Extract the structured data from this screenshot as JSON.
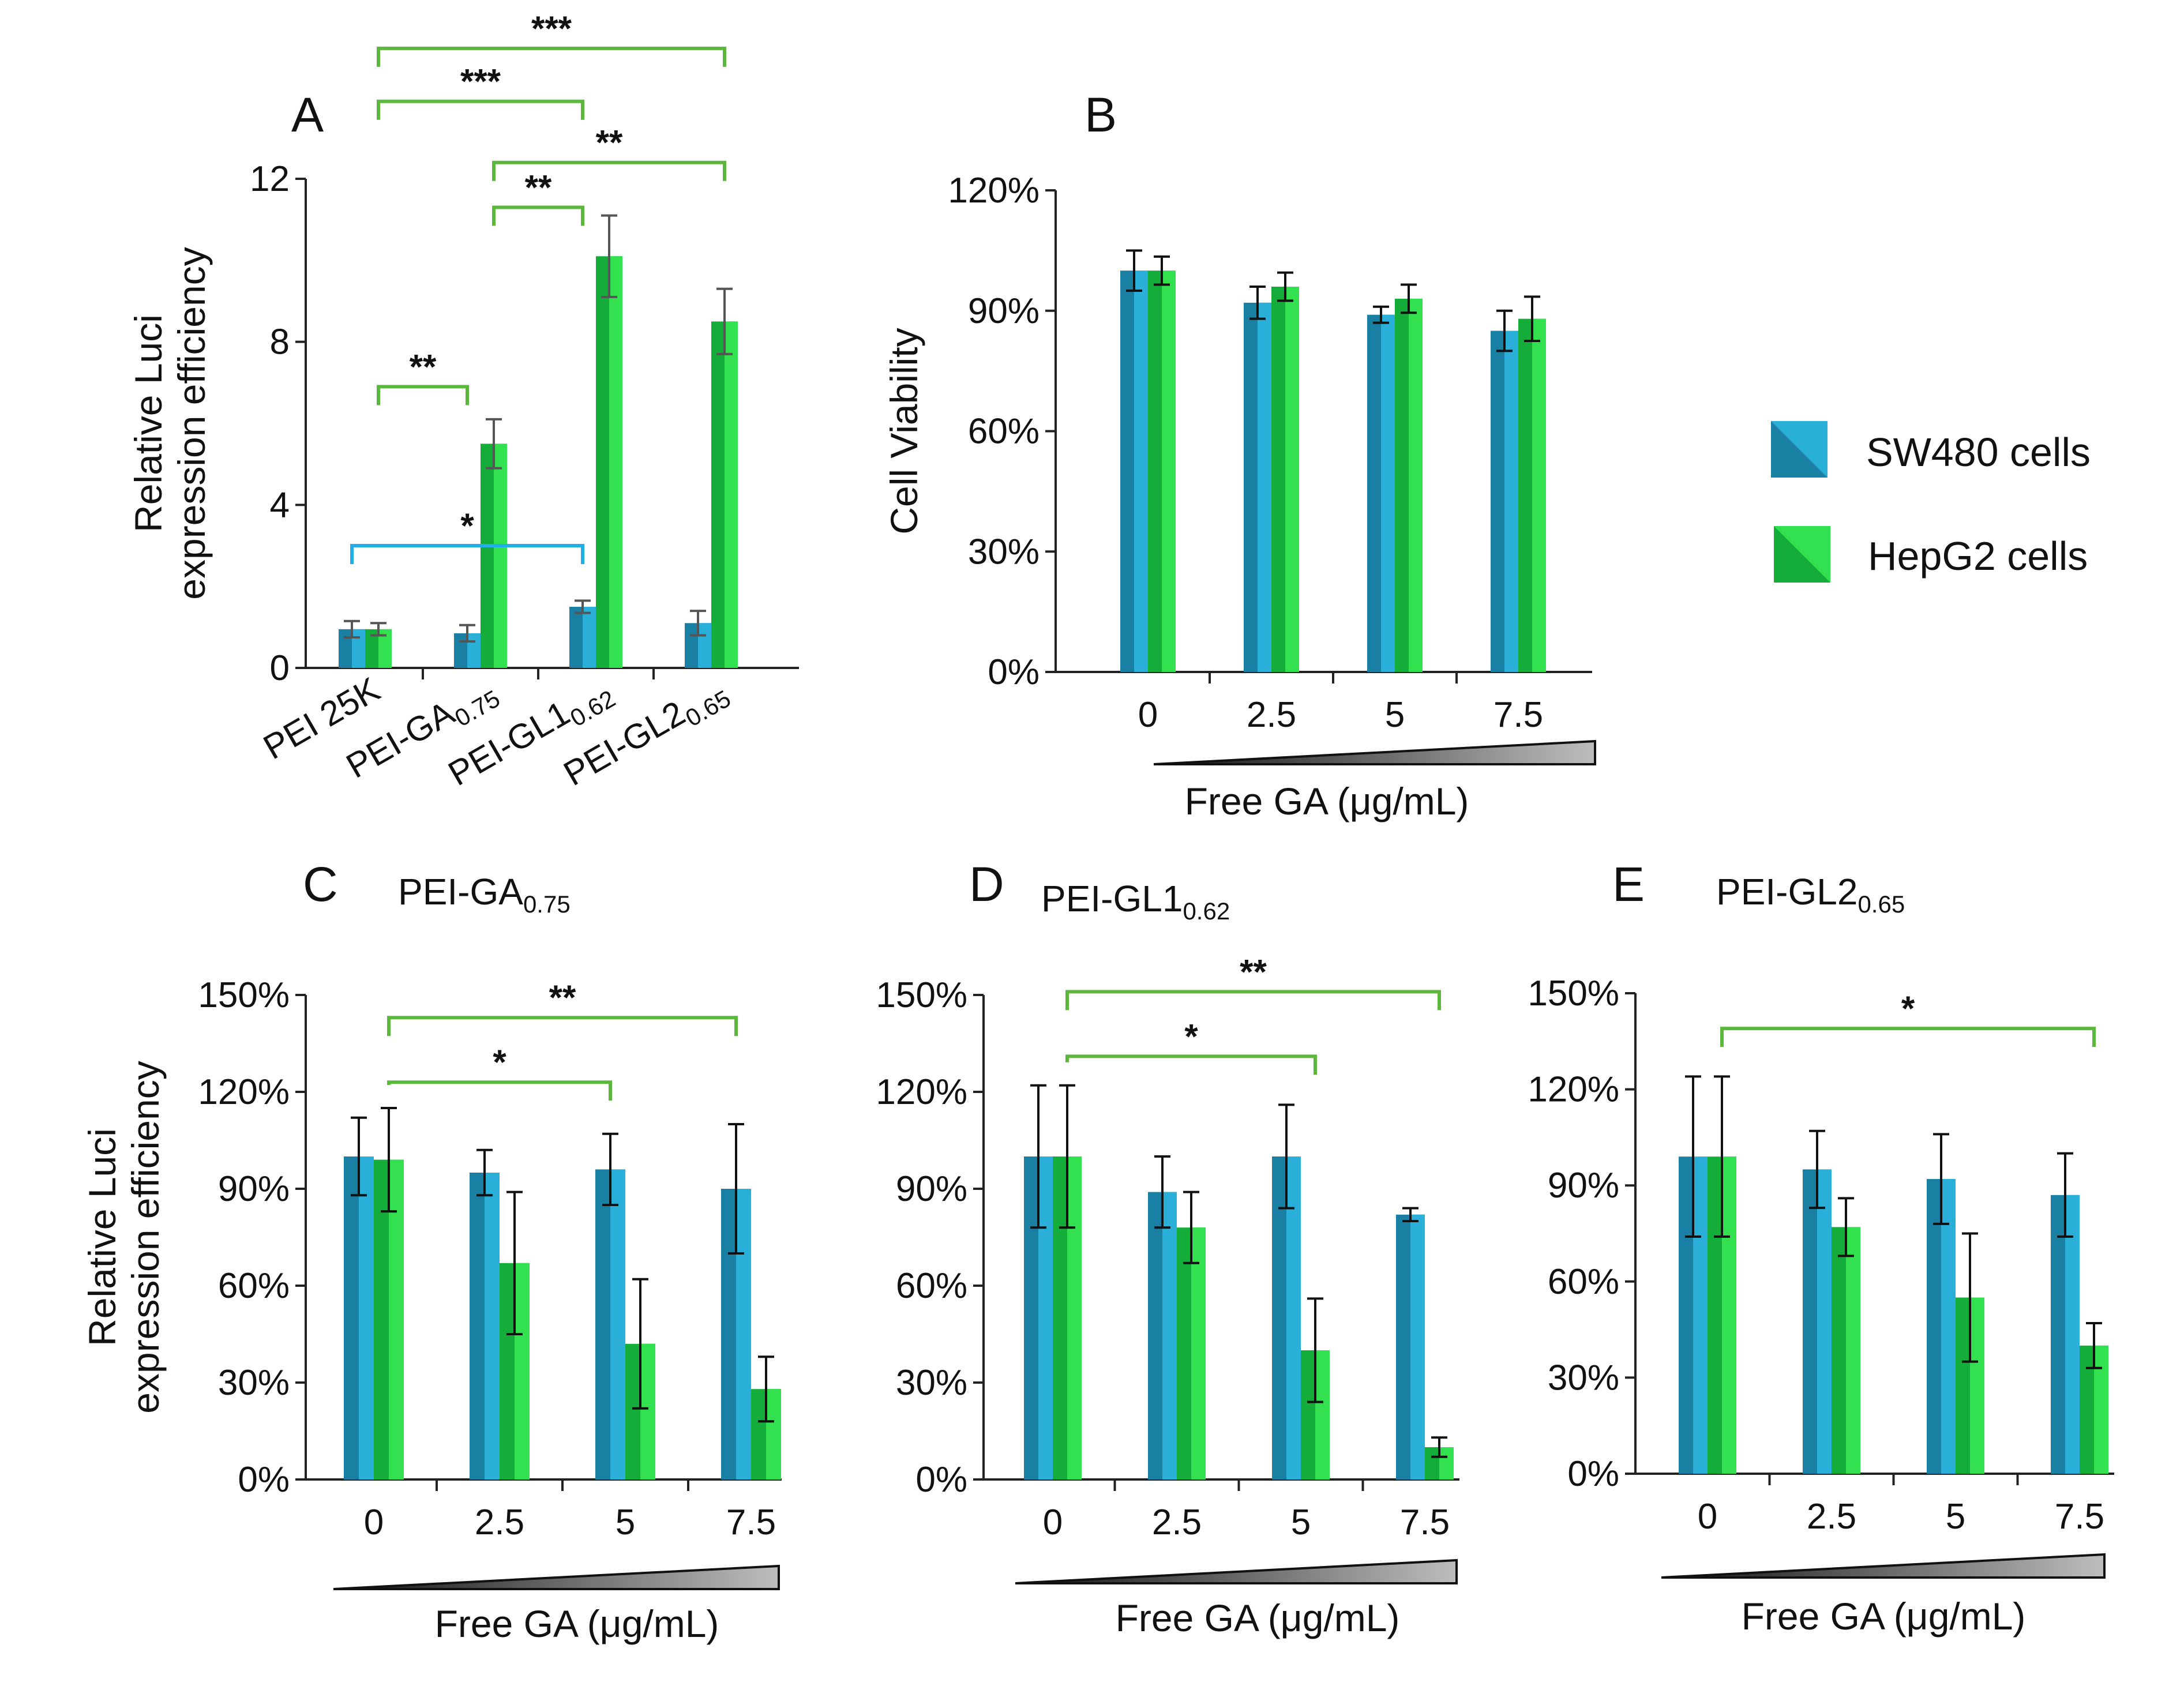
{
  "colors": {
    "sw480_dark": "#1a80a3",
    "sw480_light": "#2ab0d8",
    "hepg2_dark": "#15ad3a",
    "hepg2_light": "#33e04f",
    "sig_green": "#5cb83c",
    "sig_blue": "#22aee6",
    "gradient_light": "#bdbdbd"
  },
  "legend": {
    "sw480": "SW480 cells",
    "hepg2": "HepG2 cells"
  },
  "chart_data": [
    {
      "id": "A",
      "type": "bar",
      "label": "A",
      "ylabel_line1": "Relative Luci",
      "ylabel_line2": "expression efficiency",
      "ylim": [
        0,
        12
      ],
      "yticks": [
        "0",
        "4",
        "8",
        "12"
      ],
      "categories": [
        {
          "main": "PEI 25K",
          "sub": ""
        },
        {
          "main": "PEI-GA",
          "sub": "0.75"
        },
        {
          "main": "PEI-GL1",
          "sub": "0.62"
        },
        {
          "main": "PEI-GL2",
          "sub": "0.65"
        }
      ],
      "series": [
        {
          "name": "SW480 cells",
          "values": [
            0.95,
            0.85,
            1.5,
            1.1
          ],
          "errors": [
            0.2,
            0.2,
            0.15,
            0.3
          ]
        },
        {
          "name": "HepG2 cells",
          "values": [
            0.95,
            5.5,
            10.1,
            8.5
          ],
          "errors": [
            0.15,
            0.6,
            1.0,
            0.8
          ]
        }
      ],
      "significance": [
        {
          "stars": "***",
          "from": [
            0,
            1
          ],
          "to": [
            3,
            1
          ],
          "color": "green",
          "level": 15.2
        },
        {
          "stars": "***",
          "from": [
            0,
            1
          ],
          "to": [
            2,
            0
          ],
          "color": "green",
          "level": 13.9
        },
        {
          "stars": "**",
          "from": [
            1,
            1
          ],
          "to": [
            3,
            1
          ],
          "color": "green",
          "level": 12.4
        },
        {
          "stars": "**",
          "from": [
            1,
            1
          ],
          "to": [
            2,
            0
          ],
          "color": "green",
          "level": 11.3
        },
        {
          "stars": "**",
          "from": [
            0,
            1
          ],
          "to": [
            1,
            0
          ],
          "color": "green",
          "level": 6.9
        },
        {
          "stars": "*",
          "from": [
            0,
            0
          ],
          "to": [
            2,
            0
          ],
          "color": "blue",
          "level": 3.0
        }
      ]
    },
    {
      "id": "B",
      "type": "bar",
      "label": "B",
      "ylabel_line1": "Cell Viability",
      "ylim": [
        0,
        120
      ],
      "yticks": [
        "0%",
        "30%",
        "60%",
        "90%",
        "120%"
      ],
      "xlabel": "Free GA (μg/mL)",
      "categories": [
        "0",
        "2.5",
        "5",
        "7.5"
      ],
      "series": [
        {
          "name": "SW480 cells",
          "values": [
            100,
            92,
            89,
            85
          ],
          "errors": [
            5,
            4,
            2,
            5
          ]
        },
        {
          "name": "HepG2 cells",
          "values": [
            100,
            96,
            93,
            88
          ],
          "errors": [
            3.5,
            3.5,
            3.5,
            5.5
          ]
        }
      ],
      "significance": []
    },
    {
      "id": "C",
      "type": "bar",
      "label": "C",
      "subtitle": {
        "main": "PEI-GA",
        "sub": "0.75"
      },
      "ylabel_line1": "Relative Luci",
      "ylabel_line2": "expression efficiency",
      "ylim": [
        0,
        150
      ],
      "yticks": [
        "0%",
        "30%",
        "60%",
        "90%",
        "120%",
        "150%"
      ],
      "xlabel": "Free GA (μg/mL)",
      "categories": [
        "0",
        "2.5",
        "5",
        "7.5"
      ],
      "series": [
        {
          "name": "SW480 cells",
          "values": [
            100,
            95,
            96,
            90
          ],
          "errors": [
            12,
            7,
            11,
            20
          ]
        },
        {
          "name": "HepG2 cells",
          "values": [
            99,
            67,
            42,
            28
          ],
          "errors": [
            16,
            22,
            20,
            10
          ]
        }
      ],
      "significance": [
        {
          "stars": "**",
          "from": [
            0,
            1
          ],
          "to": [
            3,
            0
          ],
          "color": "green",
          "level": 143
        },
        {
          "stars": "*",
          "from": [
            0,
            1
          ],
          "to": [
            2,
            0
          ],
          "color": "green",
          "level": 123
        }
      ]
    },
    {
      "id": "D",
      "type": "bar",
      "label": "D",
      "subtitle": {
        "main": "PEI-GL1",
        "sub": "0.62"
      },
      "ylim": [
        0,
        150
      ],
      "yticks": [
        "0%",
        "30%",
        "60%",
        "90%",
        "120%",
        "150%"
      ],
      "xlabel": "Free GA (μg/mL)",
      "categories": [
        "0",
        "2.5",
        "5",
        "7.5"
      ],
      "series": [
        {
          "name": "SW480 cells",
          "values": [
            100,
            89,
            100,
            82
          ],
          "errors": [
            22,
            11,
            16,
            2
          ]
        },
        {
          "name": "HepG2 cells",
          "values": [
            100,
            78,
            40,
            10
          ],
          "errors": [
            22,
            11,
            16,
            3
          ]
        }
      ],
      "significance": [
        {
          "stars": "**",
          "from": [
            0,
            1
          ],
          "to": [
            3,
            1
          ],
          "color": "green",
          "level": 151
        },
        {
          "stars": "*",
          "from": [
            0,
            1
          ],
          "to": [
            2,
            1
          ],
          "color": "green",
          "level": 131
        }
      ]
    },
    {
      "id": "E",
      "type": "bar",
      "label": "E",
      "subtitle": {
        "main": "PEI-GL2",
        "sub": "0.65"
      },
      "ylim": [
        0,
        150
      ],
      "yticks": [
        "0%",
        "30%",
        "60%",
        "90%",
        "120%",
        "150%"
      ],
      "xlabel": "Free GA (μg/mL)",
      "categories": [
        "0",
        "2.5",
        "5",
        "7.5"
      ],
      "series": [
        {
          "name": "SW480 cells",
          "values": [
            99,
            95,
            92,
            87
          ],
          "errors": [
            25,
            12,
            14,
            13
          ]
        },
        {
          "name": "HepG2 cells",
          "values": [
            99,
            77,
            55,
            40
          ],
          "errors": [
            25,
            9,
            20,
            7
          ]
        }
      ],
      "significance": [
        {
          "stars": "*",
          "from": [
            0,
            1
          ],
          "to": [
            3,
            1
          ],
          "color": "green",
          "level": 139
        }
      ]
    }
  ]
}
